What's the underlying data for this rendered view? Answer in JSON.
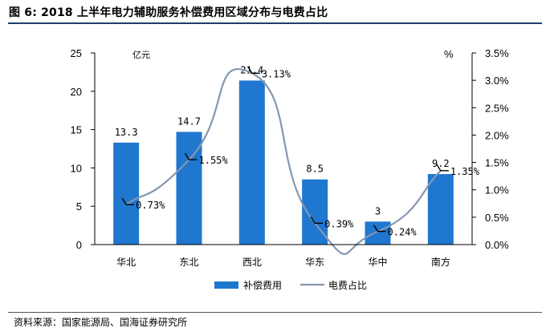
{
  "figure_title": "图 6:  2018 上半年电力辅助服务补偿费用区域分布与电费占比",
  "source": "资料来源：国家能源局、国海证券研究所",
  "colors": {
    "bar": "#1f77d0",
    "line": "#8497b0",
    "title_rule": "#1f3f6b"
  },
  "chart_data": {
    "type": "bar",
    "categories": [
      "华北",
      "东北",
      "西北",
      "华东",
      "华中",
      "南方"
    ],
    "series": [
      {
        "name": "补偿费用",
        "type": "bar",
        "axis": "left",
        "values": [
          13.3,
          14.7,
          21.4,
          8.5,
          3,
          9.2
        ],
        "labels": [
          "13.3",
          "14.7",
          "21.4",
          "8.5",
          "3",
          "9.2"
        ]
      },
      {
        "name": "电费占比",
        "type": "line",
        "axis": "right",
        "smooth": true,
        "values": [
          0.73,
          1.55,
          3.13,
          0.39,
          0.24,
          1.35
        ],
        "labels": [
          "0.73%",
          "1.55%",
          "3.13%",
          "0.39%",
          "0.24%",
          "1.35%"
        ]
      }
    ],
    "left_axis": {
      "unit_label": "亿元",
      "ylim": [
        0,
        25
      ],
      "ticks": [
        "0",
        "5",
        "10",
        "15",
        "20",
        "25"
      ]
    },
    "right_axis": {
      "unit_label": "%",
      "ylim": [
        0,
        3.5
      ],
      "ticks": [
        "0.0%",
        "0.5%",
        "1.0%",
        "1.5%",
        "2.0%",
        "2.5%",
        "3.0%",
        "3.5%"
      ]
    },
    "grid": false,
    "legend_position": "bottom"
  }
}
